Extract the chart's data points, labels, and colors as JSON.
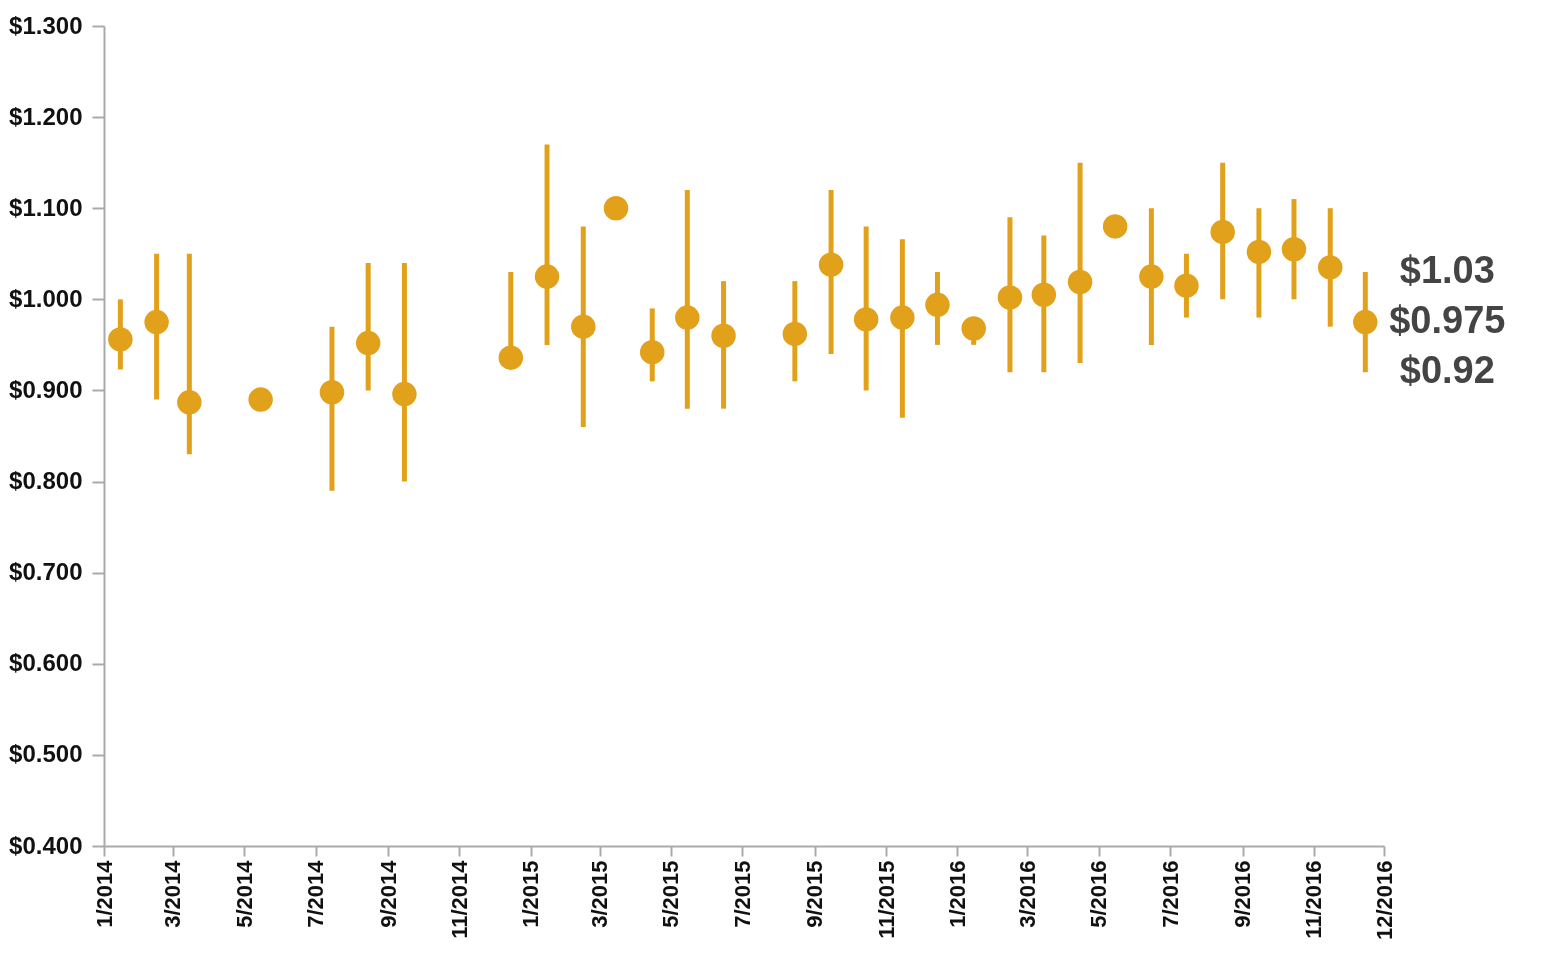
{
  "chart_data": {
    "type": "scatter",
    "marker": "circle",
    "x": [
      "2014-01-15",
      "2014-02-15",
      "2014-03-15",
      "2014-05-15",
      "2014-07-15",
      "2014-08-15",
      "2014-09-15",
      "2014-12-15",
      "2015-01-15",
      "2015-02-15",
      "2015-03-15",
      "2015-04-15",
      "2015-05-15",
      "2015-06-15",
      "2015-08-15",
      "2015-09-15",
      "2015-10-15",
      "2015-11-15",
      "2015-12-15",
      "2016-01-15",
      "2016-02-15",
      "2016-03-15",
      "2016-04-15",
      "2016-05-15",
      "2016-06-15",
      "2016-07-15",
      "2016-08-15",
      "2016-09-15",
      "2016-10-15",
      "2016-11-15",
      "2016-12-15"
    ],
    "series": [
      {
        "color": "#e2a11b",
        "values": [
          0.956,
          0.975,
          0.887,
          0.89,
          0.898,
          0.952,
          0.896,
          0.936,
          1.025,
          0.97,
          1.1,
          0.942,
          0.98,
          0.96,
          0.962,
          1.038,
          0.978,
          0.98,
          0.994,
          0.968,
          1.002,
          1.005,
          1.019,
          1.08,
          1.025,
          1.015,
          1.074,
          1.052,
          1.055,
          1.035,
          0.975
        ],
        "errors": [
          [
            0.923,
            1.0
          ],
          [
            0.89,
            1.05
          ],
          [
            0.83,
            1.05
          ],
          null,
          [
            0.79,
            0.97
          ],
          [
            0.9,
            1.04
          ],
          [
            0.8,
            1.04
          ],
          [
            0.936,
            1.03
          ],
          [
            0.95,
            1.17
          ],
          [
            0.86,
            1.08
          ],
          null,
          [
            0.91,
            0.99
          ],
          [
            0.88,
            1.12
          ],
          [
            0.88,
            1.02
          ],
          [
            0.91,
            1.02
          ],
          [
            0.94,
            1.12
          ],
          [
            0.9,
            1.08
          ],
          [
            0.87,
            1.066
          ],
          [
            0.95,
            1.03
          ],
          [
            0.95,
            0.968
          ],
          [
            0.92,
            1.09
          ],
          [
            0.92,
            1.07
          ],
          [
            0.93,
            1.15
          ],
          null,
          [
            0.95,
            1.1
          ],
          [
            0.98,
            1.05
          ],
          [
            1.0,
            1.15
          ],
          [
            0.98,
            1.1
          ],
          [
            1.0,
            1.11
          ],
          [
            0.97,
            1.1
          ],
          [
            0.92,
            1.03
          ]
        ]
      }
    ],
    "xlim": [
      "2014-01-01",
      "2016-12-31"
    ],
    "xticks": [
      {
        "value": "2014-01-01",
        "label": "1/2014"
      },
      {
        "value": "2014-03-01",
        "label": "3/2014"
      },
      {
        "value": "2014-05-01",
        "label": "5/2014"
      },
      {
        "value": "2014-07-01",
        "label": "7/2014"
      },
      {
        "value": "2014-09-01",
        "label": "9/2014"
      },
      {
        "value": "2014-11-01",
        "label": "11/2014"
      },
      {
        "value": "2015-01-01",
        "label": "1/2015"
      },
      {
        "value": "2015-03-01",
        "label": "3/2015"
      },
      {
        "value": "2015-05-01",
        "label": "5/2015"
      },
      {
        "value": "2015-07-01",
        "label": "7/2015"
      },
      {
        "value": "2015-09-01",
        "label": "9/2015"
      },
      {
        "value": "2015-11-01",
        "label": "11/2015"
      },
      {
        "value": "2016-01-01",
        "label": "1/2016"
      },
      {
        "value": "2016-03-01",
        "label": "3/2016"
      },
      {
        "value": "2016-05-01",
        "label": "5/2016"
      },
      {
        "value": "2016-07-01",
        "label": "7/2016"
      },
      {
        "value": "2016-09-01",
        "label": "9/2016"
      },
      {
        "value": "2016-11-01",
        "label": "11/2016"
      },
      {
        "value": "2016-12-31",
        "label": "12/2016"
      }
    ],
    "ylim": [
      0.4,
      1.3
    ],
    "yticks": [
      {
        "value": 0.4,
        "label": "$0.400"
      },
      {
        "value": 0.5,
        "label": "$0.500"
      },
      {
        "value": 0.6,
        "label": "$0.600"
      },
      {
        "value": 0.7,
        "label": "$0.700"
      },
      {
        "value": 0.8,
        "label": "$0.800"
      },
      {
        "value": 0.9,
        "label": "$0.900"
      },
      {
        "value": 1.0,
        "label": "$1.000"
      },
      {
        "value": 1.1,
        "label": "$1.100"
      },
      {
        "value": 1.2,
        "label": "$1.200"
      },
      {
        "value": 1.3,
        "label": "$1.300"
      }
    ],
    "annotations": [
      {
        "text": "$1.03",
        "x": "2016-12-15",
        "y": 1.03
      },
      {
        "text": "$0.975",
        "x": "2016-12-15",
        "y": 0.975
      },
      {
        "text": "$0.92",
        "x": "2016-12-15",
        "y": 0.92
      }
    ]
  }
}
